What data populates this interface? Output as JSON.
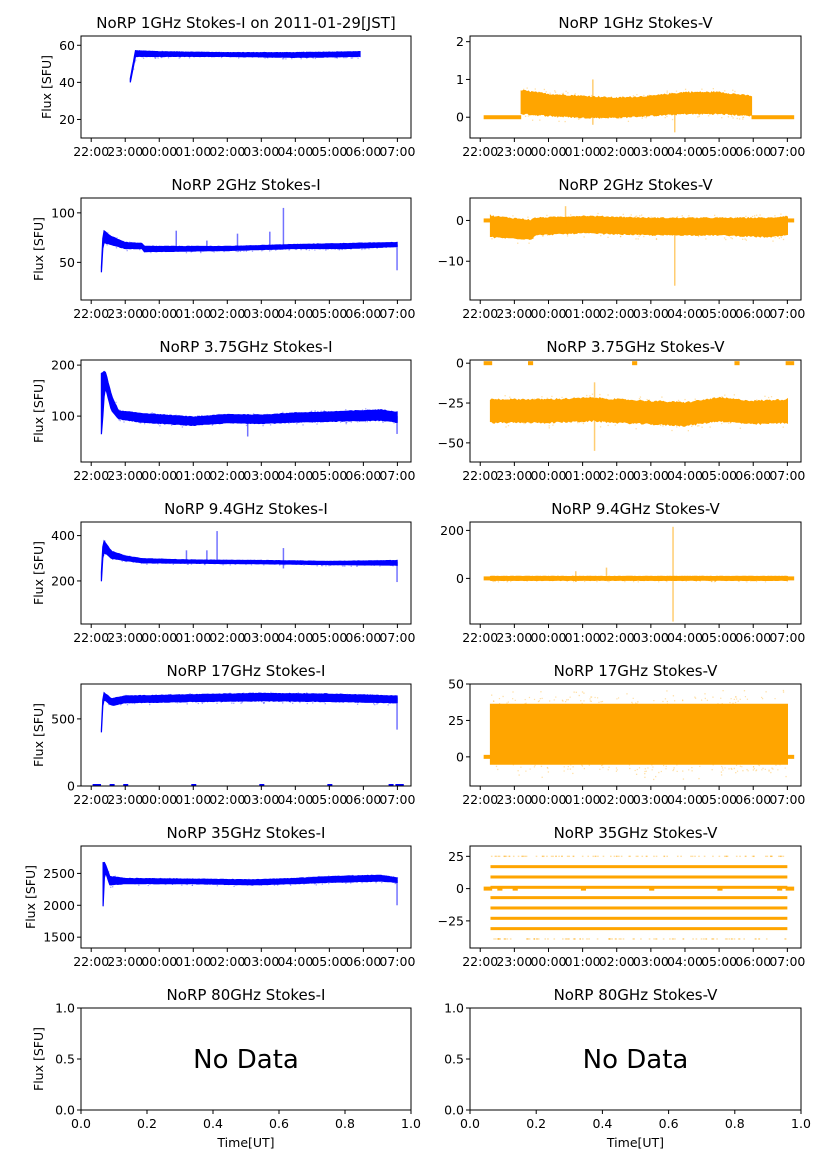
{
  "figure": {
    "xlabel": "Time[UT]",
    "ylabel": "Flux [SFU]",
    "colors": {
      "stokes_i": "#0000ff",
      "stokes_v": "#ffa500",
      "axes": "#000000"
    }
  },
  "chart_data": [
    {
      "type": "scatter",
      "id": "1ghz-i",
      "title": "NoRP 1GHz Stokes-I on 2011-01-29[JST]",
      "ylabel": "Flux [SFU]",
      "xlabel": "",
      "xticks": [
        "22:00",
        "23:00",
        "00:00",
        "01:00",
        "02:00",
        "03:00",
        "04:00",
        "05:00",
        "06:00",
        "07:00"
      ],
      "xlim_hours": [
        21.7,
        31.4
      ],
      "ylim": [
        10,
        65
      ],
      "yticks": [
        20,
        40,
        60
      ],
      "band": [
        [
          23.15,
          40,
          42
        ],
        [
          23.3,
          54,
          57
        ],
        [
          24,
          54,
          56.5
        ],
        [
          26,
          54,
          56
        ],
        [
          28,
          53.5,
          56
        ],
        [
          29.9,
          54,
          56.5
        ]
      ],
      "spikes": []
    },
    {
      "type": "scatter",
      "id": "1ghz-v",
      "title": "NoRP 1GHz Stokes-V",
      "ylabel": "",
      "xlabel": "",
      "xticks": [
        "22:00",
        "23:00",
        "00:00",
        "01:00",
        "02:00",
        "03:00",
        "04:00",
        "05:00",
        "06:00",
        "07:00"
      ],
      "xlim_hours": [
        21.7,
        31.4
      ],
      "ylim": [
        -0.55,
        2.15
      ],
      "yticks": [
        0,
        1,
        2
      ],
      "zero_line": [
        [
          22.1,
          23.2
        ],
        [
          29.95,
          31.2
        ]
      ],
      "band": [
        [
          23.2,
          0.1,
          0.7
        ],
        [
          24,
          0.05,
          0.6
        ],
        [
          25,
          0.0,
          0.55
        ],
        [
          26,
          0.0,
          0.5
        ],
        [
          27,
          0.05,
          0.55
        ],
        [
          28,
          0.1,
          0.65
        ],
        [
          29,
          0.1,
          0.65
        ],
        [
          29.95,
          0.05,
          0.55
        ]
      ],
      "spikes": [
        [
          25.3,
          -0.2,
          1.0
        ],
        [
          27.7,
          -0.4,
          0.6
        ]
      ]
    },
    {
      "type": "scatter",
      "id": "2ghz-i",
      "title": "NoRP 2GHz Stokes-I",
      "ylabel": "Flux [SFU]",
      "xlabel": "",
      "xticks": [
        "22:00",
        "23:00",
        "00:00",
        "01:00",
        "02:00",
        "03:00",
        "04:00",
        "05:00",
        "06:00",
        "07:00"
      ],
      "xlim_hours": [
        21.7,
        31.4
      ],
      "ylim": [
        12,
        115
      ],
      "yticks": [
        50,
        100
      ],
      "band": [
        [
          22.3,
          40,
          45
        ],
        [
          22.35,
          70,
          82
        ],
        [
          22.6,
          68,
          76
        ],
        [
          23,
          64,
          70
        ],
        [
          23.5,
          64,
          69
        ],
        [
          23.55,
          61,
          66
        ],
        [
          24,
          61,
          66
        ],
        [
          26,
          62,
          66
        ],
        [
          28,
          64,
          68
        ],
        [
          29.5,
          64,
          69
        ],
        [
          30.99,
          66,
          70
        ]
      ],
      "spikes": [
        [
          24.5,
          64,
          82
        ],
        [
          25.4,
          64,
          72
        ],
        [
          26.3,
          64,
          79
        ],
        [
          27.25,
          64,
          81
        ],
        [
          27.65,
          64,
          105
        ],
        [
          30.99,
          42,
          68
        ]
      ]
    },
    {
      "type": "scatter",
      "id": "2ghz-v",
      "title": "NoRP 2GHz Stokes-V",
      "ylabel": "",
      "xlabel": "",
      "xticks": [
        "22:00",
        "23:00",
        "00:00",
        "01:00",
        "02:00",
        "03:00",
        "04:00",
        "05:00",
        "06:00",
        "07:00"
      ],
      "xlim_hours": [
        21.7,
        31.4
      ],
      "ylim": [
        -19.5,
        5.5
      ],
      "yticks": [
        -10,
        0
      ],
      "zero_line": [
        [
          22.1,
          22.3
        ],
        [
          31.0,
          31.2
        ]
      ],
      "band": [
        [
          22.3,
          -4,
          1
        ],
        [
          23.5,
          -4.5,
          0
        ],
        [
          23.6,
          -3.5,
          0.5
        ],
        [
          25,
          -3,
          1
        ],
        [
          27,
          -3.5,
          0.5
        ],
        [
          29,
          -3.5,
          0.5
        ],
        [
          30.5,
          -4,
          0.5
        ],
        [
          31.0,
          -3.5,
          1
        ]
      ],
      "spikes": [
        [
          27.7,
          -16,
          0
        ],
        [
          24.5,
          -1,
          3.5
        ]
      ]
    },
    {
      "type": "scatter",
      "id": "375ghz-i",
      "title": "NoRP 3.75GHz Stokes-I",
      "ylabel": "Flux [SFU]",
      "xlabel": "",
      "xticks": [
        "22:00",
        "23:00",
        "00:00",
        "01:00",
        "02:00",
        "03:00",
        "04:00",
        "05:00",
        "06:00",
        "07:00"
      ],
      "xlim_hours": [
        21.7,
        31.4
      ],
      "ylim": [
        10,
        210
      ],
      "yticks": [
        100,
        200
      ],
      "band": [
        [
          22.3,
          60,
          180
        ],
        [
          22.4,
          160,
          190
        ],
        [
          22.6,
          110,
          140
        ],
        [
          22.8,
          95,
          110
        ],
        [
          23.5,
          88,
          105
        ],
        [
          25,
          82,
          98
        ],
        [
          26,
          87,
          103
        ],
        [
          27,
          86,
          102
        ],
        [
          28,
          88,
          106
        ],
        [
          29,
          90,
          108
        ],
        [
          30.5,
          92,
          112
        ],
        [
          30.99,
          88,
          108
        ]
      ],
      "spikes": [
        [
          26.6,
          60,
          100
        ],
        [
          30.99,
          65,
          100
        ]
      ]
    },
    {
      "type": "scatter",
      "id": "375ghz-v",
      "title": "NoRP 3.75GHz Stokes-V",
      "ylabel": "",
      "xlabel": "",
      "xticks": [
        "22:00",
        "23:00",
        "00:00",
        "01:00",
        "02:00",
        "03:00",
        "04:00",
        "05:00",
        "06:00",
        "07:00"
      ],
      "xlim_hours": [
        21.7,
        31.4
      ],
      "ylim": [
        -62,
        2
      ],
      "yticks": [
        -50,
        -25,
        0
      ],
      "zero_line": [
        [
          22.1,
          22.35
        ],
        [
          23.4,
          23.55
        ],
        [
          26.45,
          26.6
        ],
        [
          29.45,
          29.6
        ],
        [
          30.95,
          31.2
        ]
      ],
      "band": [
        [
          22.3,
          -37,
          -23
        ],
        [
          24,
          -37,
          -23
        ],
        [
          25.3,
          -36,
          -22
        ],
        [
          26,
          -37,
          -23
        ],
        [
          27,
          -38,
          -24
        ],
        [
          28,
          -39,
          -25
        ],
        [
          29,
          -36,
          -22
        ],
        [
          30,
          -38,
          -24
        ],
        [
          31.0,
          -37,
          -23
        ]
      ],
      "spikes": [
        [
          25.35,
          -55,
          -12
        ]
      ]
    },
    {
      "type": "scatter",
      "id": "94ghz-i",
      "title": "NoRP 9.4GHz Stokes-I",
      "ylabel": "Flux [SFU]",
      "xlabel": "",
      "xticks": [
        "22:00",
        "23:00",
        "00:00",
        "01:00",
        "02:00",
        "03:00",
        "04:00",
        "05:00",
        "06:00",
        "07:00"
      ],
      "xlim_hours": [
        21.7,
        31.4
      ],
      "ylim": [
        10,
        460
      ],
      "yticks": [
        200,
        400
      ],
      "band": [
        [
          22.3,
          200,
          240
        ],
        [
          22.35,
          330,
          380
        ],
        [
          22.6,
          300,
          330
        ],
        [
          23,
          290,
          310
        ],
        [
          23.5,
          280,
          298
        ],
        [
          25,
          278,
          292
        ],
        [
          27,
          276,
          290
        ],
        [
          29,
          272,
          286
        ],
        [
          30.99,
          270,
          290
        ]
      ],
      "spikes": [
        [
          24.8,
          280,
          335
        ],
        [
          25.4,
          280,
          335
        ],
        [
          25.7,
          280,
          420
        ],
        [
          27.65,
          255,
          345
        ],
        [
          30.99,
          195,
          285
        ]
      ]
    },
    {
      "type": "scatter",
      "id": "94ghz-v",
      "title": "NoRP 9.4GHz Stokes-V",
      "ylabel": "",
      "xlabel": "",
      "xticks": [
        "22:00",
        "23:00",
        "00:00",
        "01:00",
        "02:00",
        "03:00",
        "04:00",
        "05:00",
        "06:00",
        "07:00"
      ],
      "xlim_hours": [
        21.7,
        31.4
      ],
      "ylim": [
        -190,
        235
      ],
      "yticks": [
        0,
        200
      ],
      "zero_line": [
        [
          22.1,
          31.2
        ]
      ],
      "band": [
        [
          22.3,
          -8,
          8
        ],
        [
          31.0,
          -8,
          8
        ]
      ],
      "spikes": [
        [
          27.65,
          -180,
          215
        ],
        [
          24.8,
          -15,
          30
        ],
        [
          25.7,
          -5,
          45
        ]
      ]
    },
    {
      "type": "scatter",
      "id": "17ghz-i",
      "title": "NoRP 17GHz Stokes-I",
      "ylabel": "Flux [SFU]",
      "xlabel": "",
      "xticks": [
        "22:00",
        "23:00",
        "00:00",
        "01:00",
        "02:00",
        "03:00",
        "04:00",
        "05:00",
        "06:00",
        "07:00"
      ],
      "xlim_hours": [
        21.7,
        31.4
      ],
      "ylim": [
        0,
        760
      ],
      "yticks": [
        0,
        500
      ],
      "band": [
        [
          22.3,
          400,
          420
        ],
        [
          22.35,
          650,
          700
        ],
        [
          22.6,
          600,
          650
        ],
        [
          23,
          620,
          670
        ],
        [
          25,
          630,
          680
        ],
        [
          27,
          635,
          690
        ],
        [
          29,
          630,
          685
        ],
        [
          30.99,
          620,
          670
        ]
      ],
      "spikes": [
        [
          30.99,
          420,
          660
        ]
      ],
      "zero_marks": [
        22.1,
        22.2,
        22.6,
        23.0,
        25.0,
        27.0,
        29.0,
        30.8,
        31.0,
        31.1
      ]
    },
    {
      "type": "scatter",
      "id": "17ghz-v",
      "title": "NoRP 17GHz Stokes-V",
      "ylabel": "",
      "xlabel": "",
      "xticks": [
        "22:00",
        "23:00",
        "00:00",
        "01:00",
        "02:00",
        "03:00",
        "04:00",
        "05:00",
        "06:00",
        "07:00"
      ],
      "xlim_hours": [
        21.7,
        31.4
      ],
      "ylim": [
        -20,
        50
      ],
      "yticks": [
        0,
        25,
        50
      ],
      "zero_line": [
        [
          22.1,
          22.3
        ],
        [
          31.0,
          31.2
        ]
      ],
      "band": [
        [
          22.3,
          -5,
          36
        ],
        [
          31.0,
          -5,
          36
        ]
      ],
      "halo": [
        -10,
        42
      ],
      "spikes": []
    },
    {
      "type": "scatter",
      "id": "35ghz-i",
      "title": "NoRP 35GHz Stokes-I",
      "ylabel": "Flux [SFU]",
      "xlabel": "",
      "xticks": [
        "22:00",
        "23:00",
        "00:00",
        "01:00",
        "02:00",
        "03:00",
        "04:00",
        "05:00",
        "06:00",
        "07:00"
      ],
      "xlim_hours": [
        21.7,
        31.4
      ],
      "ylim": [
        1330,
        2930
      ],
      "yticks": [
        1500,
        2000,
        2500
      ],
      "band": [
        [
          22.35,
          2000,
          2680
        ],
        [
          22.4,
          2550,
          2660
        ],
        [
          22.55,
          2320,
          2450
        ],
        [
          23,
          2340,
          2420
        ],
        [
          25,
          2340,
          2410
        ],
        [
          26.7,
          2320,
          2400
        ],
        [
          28,
          2340,
          2420
        ],
        [
          29,
          2360,
          2450
        ],
        [
          30.5,
          2380,
          2470
        ],
        [
          30.99,
          2360,
          2430
        ]
      ],
      "spikes": [
        [
          30.99,
          2000,
          2400
        ]
      ]
    },
    {
      "type": "scatter",
      "id": "35ghz-v",
      "title": "NoRP 35GHz Stokes-V",
      "ylabel": "",
      "xlabel": "",
      "xticks": [
        "22:00",
        "23:00",
        "00:00",
        "01:00",
        "02:00",
        "03:00",
        "04:00",
        "05:00",
        "06:00",
        "07:00"
      ],
      "xlim_hours": [
        21.7,
        31.4
      ],
      "ylim": [
        -46,
        33
      ],
      "yticks": [
        -25,
        0,
        25
      ],
      "zero_line": [
        [
          22.1,
          22.35
        ],
        [
          22.5,
          22.65
        ],
        [
          22.95,
          23.1
        ],
        [
          24.95,
          25.1
        ],
        [
          26.95,
          27.1
        ],
        [
          28.95,
          29.1
        ],
        [
          30.7,
          30.85
        ],
        [
          30.95,
          31.2
        ]
      ],
      "levels": [
        25,
        17,
        9,
        1,
        -7,
        -15,
        -23,
        -31,
        -39
      ],
      "level_range": [
        22.3,
        31.0
      ],
      "spikes": []
    },
    {
      "type": "scatter",
      "id": "80ghz-i",
      "title": "NoRP 80GHz Stokes-I",
      "ylabel": "Flux [SFU]",
      "xlabel": "Time[UT]",
      "no_data": true,
      "annotation": "No Data",
      "xlim": [
        0,
        1
      ],
      "ylim": [
        0,
        1
      ],
      "xticks": [
        "0.0",
        "0.2",
        "0.4",
        "0.6",
        "0.8",
        "1.0"
      ],
      "yticks": [
        "0.0",
        "0.5",
        "1.0"
      ]
    },
    {
      "type": "scatter",
      "id": "80ghz-v",
      "title": "NoRP 80GHz Stokes-V",
      "ylabel": "",
      "xlabel": "Time[UT]",
      "no_data": true,
      "annotation": "No Data",
      "xlim": [
        0,
        1
      ],
      "ylim": [
        0,
        1
      ],
      "xticks": [
        "0.0",
        "0.2",
        "0.4",
        "0.6",
        "0.8",
        "1.0"
      ],
      "yticks": [
        "0.0",
        "0.5",
        "1.0"
      ]
    }
  ]
}
